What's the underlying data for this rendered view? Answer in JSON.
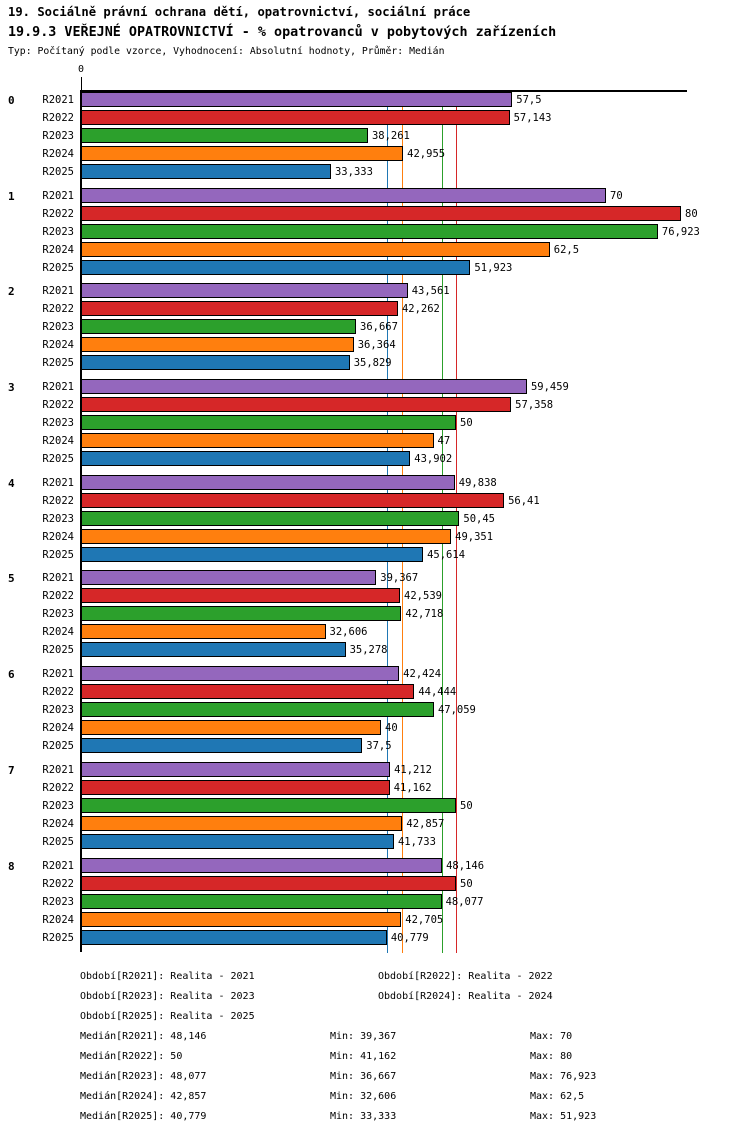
{
  "header": {
    "title_line1": "19. Sociálně právní ochrana dětí, opatrovnictví, sociální práce",
    "title_line2": "19.9.3 VEŘEJNÉ OPATROVNICTVÍ - % opatrovanců v pobytových zařízeních",
    "subtitle": "Typ: Počítaný podle vzorce, Vyhodnocení: Absolutní hodnoty, Průměr: Medián"
  },
  "chart_data": {
    "type": "bar",
    "orientation": "horizontal",
    "axis_zero_label": "0",
    "xlim": [
      0,
      80.8
    ],
    "grid": false,
    "categories": [
      "0",
      "1",
      "2",
      "3",
      "4",
      "5",
      "6",
      "7",
      "8"
    ],
    "series": [
      {
        "name": "R2021",
        "color": "#9467bd",
        "values": [
          57.5,
          70,
          43.561,
          59.459,
          49.838,
          39.367,
          42.424,
          41.212,
          48.146
        ],
        "labels": [
          "57,5",
          "70",
          "43,561",
          "59,459",
          "49,838",
          "39,367",
          "42,424",
          "41,212",
          "48,146"
        ]
      },
      {
        "name": "R2022",
        "color": "#d62728",
        "values": [
          57.143,
          80,
          42.262,
          57.358,
          56.41,
          42.539,
          44.444,
          41.162,
          50
        ],
        "labels": [
          "57,143",
          "80",
          "42,262",
          "57,358",
          "56,41",
          "42,539",
          "44,444",
          "41,162",
          "50"
        ]
      },
      {
        "name": "R2023",
        "color": "#2ca02c",
        "values": [
          38.261,
          76.923,
          36.667,
          50,
          50.45,
          42.718,
          47.059,
          50,
          48.077
        ],
        "labels": [
          "38,261",
          "76,923",
          "36,667",
          "50",
          "50,45",
          "42,718",
          "47,059",
          "50",
          "48,077"
        ]
      },
      {
        "name": "R2024",
        "color": "#ff7f0e",
        "values": [
          42.955,
          62.5,
          36.364,
          47,
          49.351,
          32.606,
          40,
          42.857,
          42.705
        ],
        "labels": [
          "42,955",
          "62,5",
          "36,364",
          "47",
          "49,351",
          "32,606",
          "40",
          "42,857",
          "42,705"
        ]
      },
      {
        "name": "R2025",
        "color": "#1f77b4",
        "values": [
          33.333,
          51.923,
          35.829,
          43.902,
          45.614,
          35.278,
          37.5,
          41.733,
          40.779
        ],
        "labels": [
          "33,333",
          "51,923",
          "35,829",
          "43,902",
          "45,614",
          "35,278",
          "37,5",
          "41,733",
          "40,779"
        ]
      }
    ],
    "median_lines": [
      {
        "name": "R2021",
        "value": 48.146,
        "color": "#9467bd"
      },
      {
        "name": "R2022",
        "value": 50,
        "color": "#d62728"
      },
      {
        "name": "R2023",
        "value": 48.077,
        "color": "#2ca02c"
      },
      {
        "name": "R2024",
        "value": 42.857,
        "color": "#ff7f0e"
      },
      {
        "name": "R2025",
        "value": 40.779,
        "color": "#1f77b4"
      }
    ]
  },
  "legend": {
    "items": [
      "Období[R2021]: Realita - 2021",
      "Období[R2022]: Realita - 2022",
      "Období[R2023]: Realita - 2023",
      "Období[R2024]: Realita - 2024",
      "Období[R2025]: Realita - 2025"
    ]
  },
  "stats": {
    "rows": [
      {
        "median": "Medián[R2021]: 48,146",
        "min": "Min: 39,367",
        "max": "Max: 70"
      },
      {
        "median": "Medián[R2022]: 50",
        "min": "Min: 41,162",
        "max": "Max: 80"
      },
      {
        "median": "Medián[R2023]: 48,077",
        "min": "Min: 36,667",
        "max": "Max: 76,923"
      },
      {
        "median": "Medián[R2024]: 42,857",
        "min": "Min: 32,606",
        "max": "Max: 62,5"
      },
      {
        "median": "Medián[R2025]: 40,779",
        "min": "Min: 33,333",
        "max": "Max: 51,923"
      }
    ]
  }
}
